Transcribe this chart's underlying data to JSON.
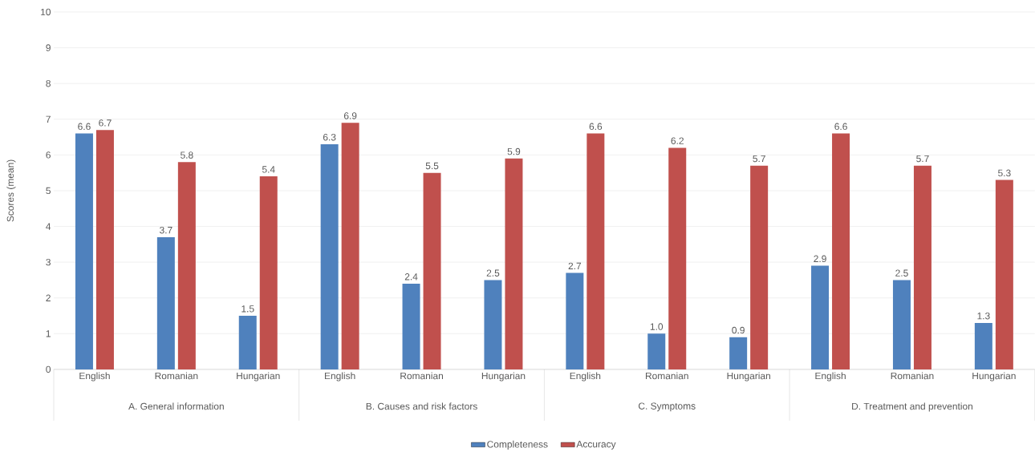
{
  "chart_data": {
    "type": "bar",
    "ylabel": "Scores  (mean)",
    "categories": [
      "English",
      "Romanian",
      "Hungarian",
      "English",
      "Romanian",
      "Hungarian",
      "English",
      "Romanian",
      "Hungarian",
      "English",
      "Romanian",
      "Hungarian"
    ],
    "annotations": [
      "A. General information",
      "B. Causes and risk factors",
      "C. Symptoms",
      "D. Treatment and prevention"
    ],
    "series": [
      {
        "name": "Completeness",
        "color": "#4f81bd",
        "values": [
          6.6,
          3.7,
          1.5,
          6.3,
          2.4,
          2.5,
          2.7,
          1.0,
          0.9,
          2.9,
          2.5,
          1.3
        ],
        "value_labels": [
          "6.6",
          "3.7",
          "1.5",
          "6.3",
          "2.4",
          "2.5",
          "2.7",
          "1.0",
          "0.9",
          "2.9",
          "2.5",
          "1.3"
        ]
      },
      {
        "name": "Accuracy",
        "color": "#c0504d",
        "values": [
          6.7,
          5.8,
          5.4,
          6.9,
          5.5,
          5.9,
          6.6,
          6.2,
          5.7,
          6.6,
          5.7,
          5.3
        ],
        "value_labels": [
          "6.7",
          "5.8",
          "5.4",
          "6.9",
          "5.5",
          "5.9",
          "6.6",
          "6.2",
          "5.7",
          "6.6",
          "5.7",
          "5.3"
        ]
      }
    ],
    "ylim": [
      0,
      10
    ],
    "yticks": [
      0,
      1,
      2,
      3,
      4,
      5,
      6,
      7,
      8,
      9,
      10
    ],
    "grid": "y",
    "legend": "bottom"
  }
}
